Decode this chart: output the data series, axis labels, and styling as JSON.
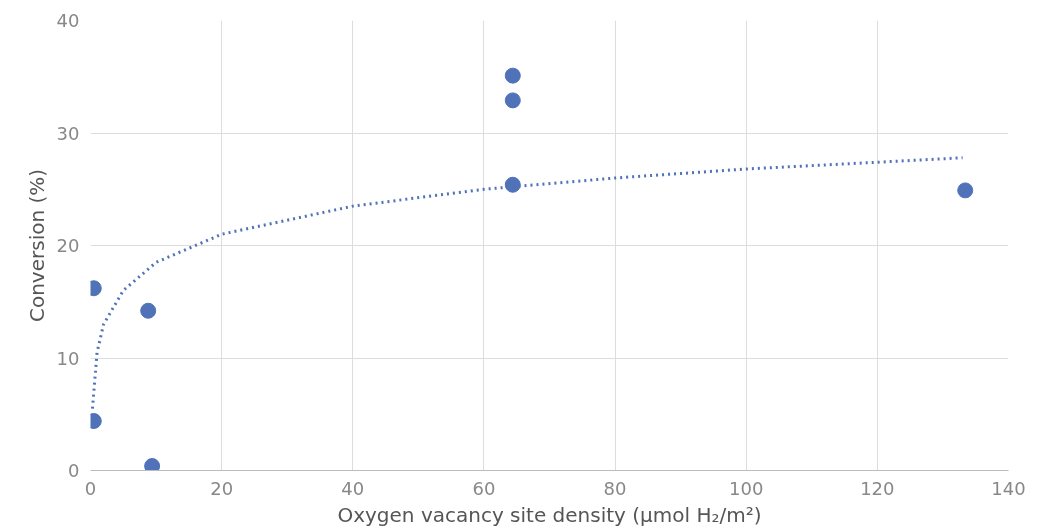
{
  "chart_data": {
    "type": "scatter",
    "xlabel": "Oxygen vacancy site density (μmol H₂/m²)",
    "ylabel": "Conversion (%)",
    "xlim": [
      0,
      140
    ],
    "ylim": [
      0,
      40
    ],
    "xticks": [
      0,
      20,
      40,
      60,
      80,
      100,
      120,
      140
    ],
    "yticks": [
      0,
      10,
      20,
      30,
      40
    ],
    "grid": true,
    "series": [
      {
        "color": "#4f72b8",
        "marker": "circle",
        "x": [
          0.5,
          0.5,
          8.8,
          9.4,
          64.4,
          64.4,
          64.4,
          133.4
        ],
        "values": [
          16.2,
          4.4,
          14.2,
          0.4,
          35.1,
          32.9,
          25.4,
          24.9
        ]
      },
      {
        "type": "line",
        "color": "#4f72b8",
        "line_style": "dotted",
        "x": [
          0.3,
          1,
          2,
          5,
          10,
          20,
          40,
          60,
          80,
          100,
          120,
          133
        ],
        "values": [
          5.5,
          10.5,
          13,
          16,
          18.5,
          21,
          23.5,
          25,
          26,
          26.8,
          27.4,
          27.8
        ]
      }
    ]
  }
}
